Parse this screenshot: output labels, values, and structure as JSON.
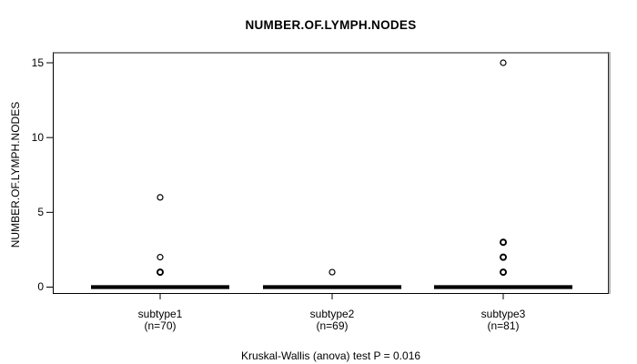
{
  "chart_data": {
    "type": "boxplot",
    "title": "NUMBER.OF.LYMPH.NODES",
    "ylabel": "NUMBER.OF.LYMPH.NODES",
    "caption": "Kruskal-Wallis (anova) test P = 0.016",
    "ylim": [
      0,
      15
    ],
    "yticks": [
      0,
      5,
      10,
      15
    ],
    "grid": false,
    "groups": [
      {
        "label": "subtype1",
        "sublabel": "(n=70)",
        "n": 70,
        "median": 0,
        "q1": 0,
        "q3": 0,
        "whisker_low": 0,
        "whisker_high": 0,
        "outliers": [
          {
            "value": 6,
            "bold": false
          },
          {
            "value": 2,
            "bold": false
          },
          {
            "value": 1,
            "bold": true
          }
        ]
      },
      {
        "label": "subtype2",
        "sublabel": "(n=69)",
        "n": 69,
        "median": 0,
        "q1": 0,
        "q3": 0,
        "whisker_low": 0,
        "whisker_high": 0,
        "outliers": [
          {
            "value": 1,
            "bold": false
          }
        ]
      },
      {
        "label": "subtype3",
        "sublabel": "(n=81)",
        "n": 81,
        "median": 0,
        "q1": 0,
        "q3": 0,
        "whisker_low": 0,
        "whisker_high": 0,
        "outliers": [
          {
            "value": 15,
            "bold": false
          },
          {
            "value": 3,
            "bold": true
          },
          {
            "value": 2,
            "bold": true
          },
          {
            "value": 1,
            "bold": true
          }
        ]
      }
    ],
    "colors": {
      "marks": "#000000",
      "frame_shadow": "#8a8a8a",
      "background": "#ffffff",
      "text": "#000000"
    }
  }
}
